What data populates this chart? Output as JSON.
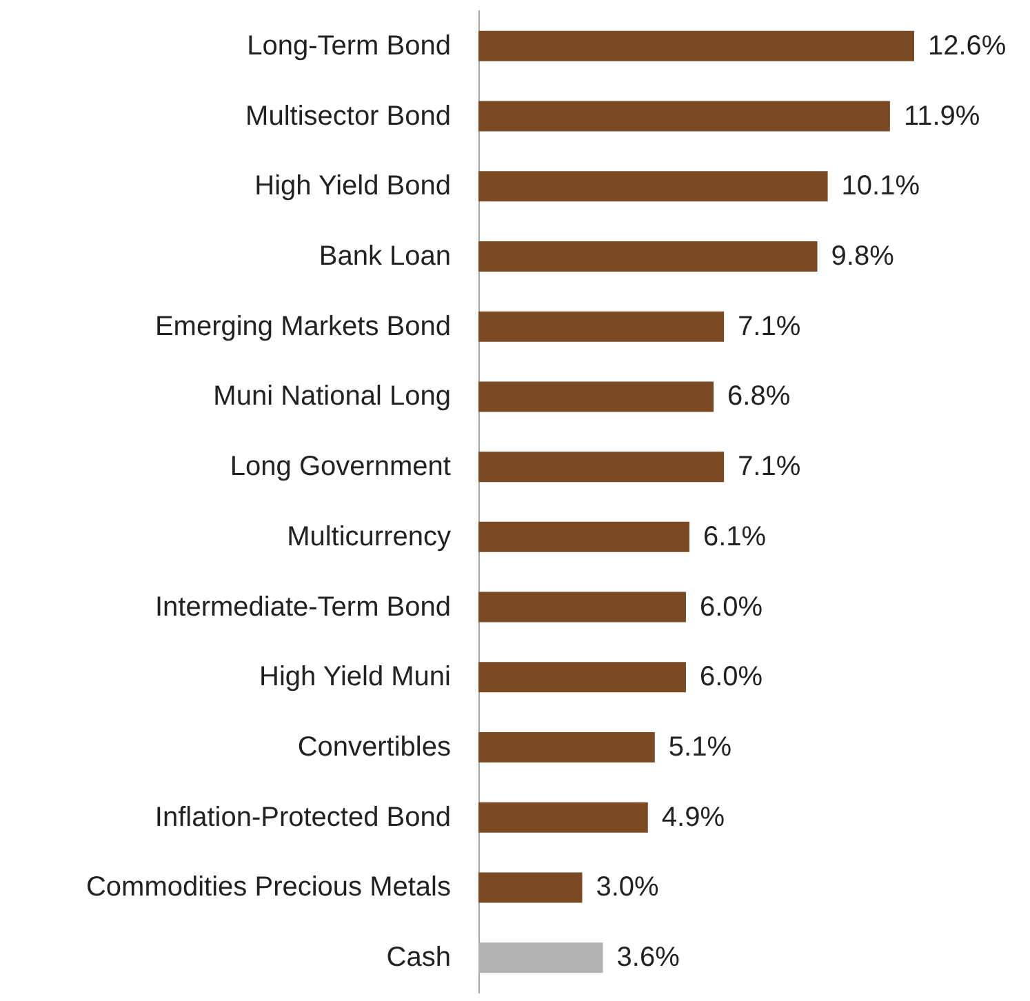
{
  "chart_data": {
    "type": "bar",
    "orientation": "horizontal",
    "categories": [
      "Long-Term Bond",
      "Multisector Bond",
      "High Yield Bond",
      "Bank Loan",
      "Emerging Markets Bond",
      "Muni National Long",
      "Long Government",
      "Multicurrency",
      "Intermediate-Term Bond",
      "High Yield Muni",
      "Convertibles",
      "Inflation-Protected Bond",
      "Commodities Precious Metals",
      "Cash"
    ],
    "values": [
      12.6,
      11.9,
      10.1,
      9.8,
      7.1,
      6.8,
      7.1,
      6.1,
      6.0,
      6.0,
      5.1,
      4.9,
      3.0,
      3.6
    ],
    "value_labels": [
      "12.6%",
      "11.9%",
      "10.1%",
      "9.8%",
      "7.1%",
      "6.8%",
      "7.1%",
      "6.1%",
      "6.0%",
      "6.0%",
      "5.1%",
      "4.9%",
      "3.0%",
      "3.6%"
    ],
    "colors": [
      "#7b4a23",
      "#7b4a23",
      "#7b4a23",
      "#7b4a23",
      "#7b4a23",
      "#7b4a23",
      "#7b4a23",
      "#7b4a23",
      "#7b4a23",
      "#7b4a23",
      "#7b4a23",
      "#7b4a23",
      "#7b4a23",
      "#b2b2b2"
    ]
  }
}
